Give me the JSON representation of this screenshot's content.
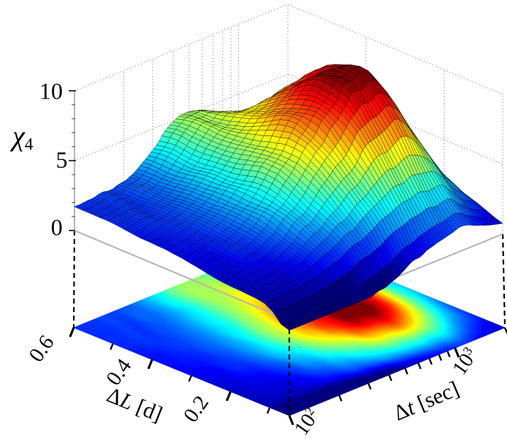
{
  "chart_data": {
    "type": "surface",
    "title": "",
    "colormap": "jet",
    "projection_heatmap": true,
    "x_axis": {
      "label_delta": "Δ",
      "label_var": "t",
      "label_unit": " [sec]",
      "scale": "log",
      "min": 100,
      "max": 2000,
      "major_ticks": [
        {
          "base": "10",
          "exp": "2",
          "value": 100
        },
        {
          "base": "10",
          "exp": "3",
          "value": 1000
        }
      ],
      "minor_tick_values": [
        200,
        300,
        400,
        500,
        600,
        700,
        800,
        900,
        2000
      ]
    },
    "y_axis": {
      "label_delta": "Δ",
      "label_var": "L",
      "label_unit": " [d]",
      "scale": "linear",
      "min": 0.05,
      "max": 0.6,
      "major_ticks": [
        {
          "label": "0.6",
          "value": 0.6
        },
        {
          "label": "0.4",
          "value": 0.4
        },
        {
          "label": "0.2",
          "value": 0.2
        }
      ],
      "minor_tick_values": [
        0.5,
        0.3,
        0.1
      ]
    },
    "z_axis": {
      "label_sym": "χ",
      "label_sub": "4",
      "min": 0,
      "max": 10,
      "ticks": [
        {
          "label": "10",
          "value": 10
        },
        {
          "label": "5",
          "value": 5
        },
        {
          "label": "0",
          "value": 0
        }
      ],
      "minor_tick_values": [
        1,
        2,
        3,
        4,
        6,
        7,
        8,
        9
      ]
    },
    "surface_model": {
      "description": "chi4(u,v): u = log-fraction along Delta-t in [0,1], v = fraction along Delta-L from 0.6 (v=0) to 0.05 (v=1); peak chi4 ~10 near Delta-t ~ 600-900 s and Delta-L ~ 0.2-0.3 d, secondary bump on the Delta-L=0.6 edge near Delta-t ~ 450 s, low flat plateau ~1.6 on the back edge.",
      "base_offset": 0.35,
      "back_ridge": {
        "amp": 1.3,
        "sigma_v": 0.42
      },
      "peak": {
        "amp": 9.3,
        "u0": 0.78,
        "v0": 0.55,
        "su_left": 0.28,
        "su_right": 0.13,
        "sv_low": 0.3,
        "sv_high": 0.24
      },
      "secondary_bump": {
        "amp": 2.4,
        "u0": 0.5,
        "v0": 0.0,
        "su": 0.115,
        "sv": 0.16
      },
      "front_dip": {
        "amp": 2.0,
        "sv": 0.05,
        "u0": 0.25,
        "su": 0.3
      },
      "cap": 10.3,
      "floor": -0.7,
      "noise": {
        "seed": 11,
        "base_amp": 0.12,
        "z_amp": 0.045,
        "smooth_passes": 2,
        "gain": 2.3
      },
      "grid": {
        "nu": 78,
        "nv": 26
      },
      "heatmap_grid": {
        "nu": 120,
        "nv": 80
      }
    },
    "colors": {
      "background": "#ffffff",
      "grid_dotted": "#9a9a9a",
      "box_edge": "#b6b6b6",
      "tick": "#000000",
      "dashed_connector": "#000000",
      "mesh_edge": "rgba(0,0,0,0.78)"
    }
  }
}
